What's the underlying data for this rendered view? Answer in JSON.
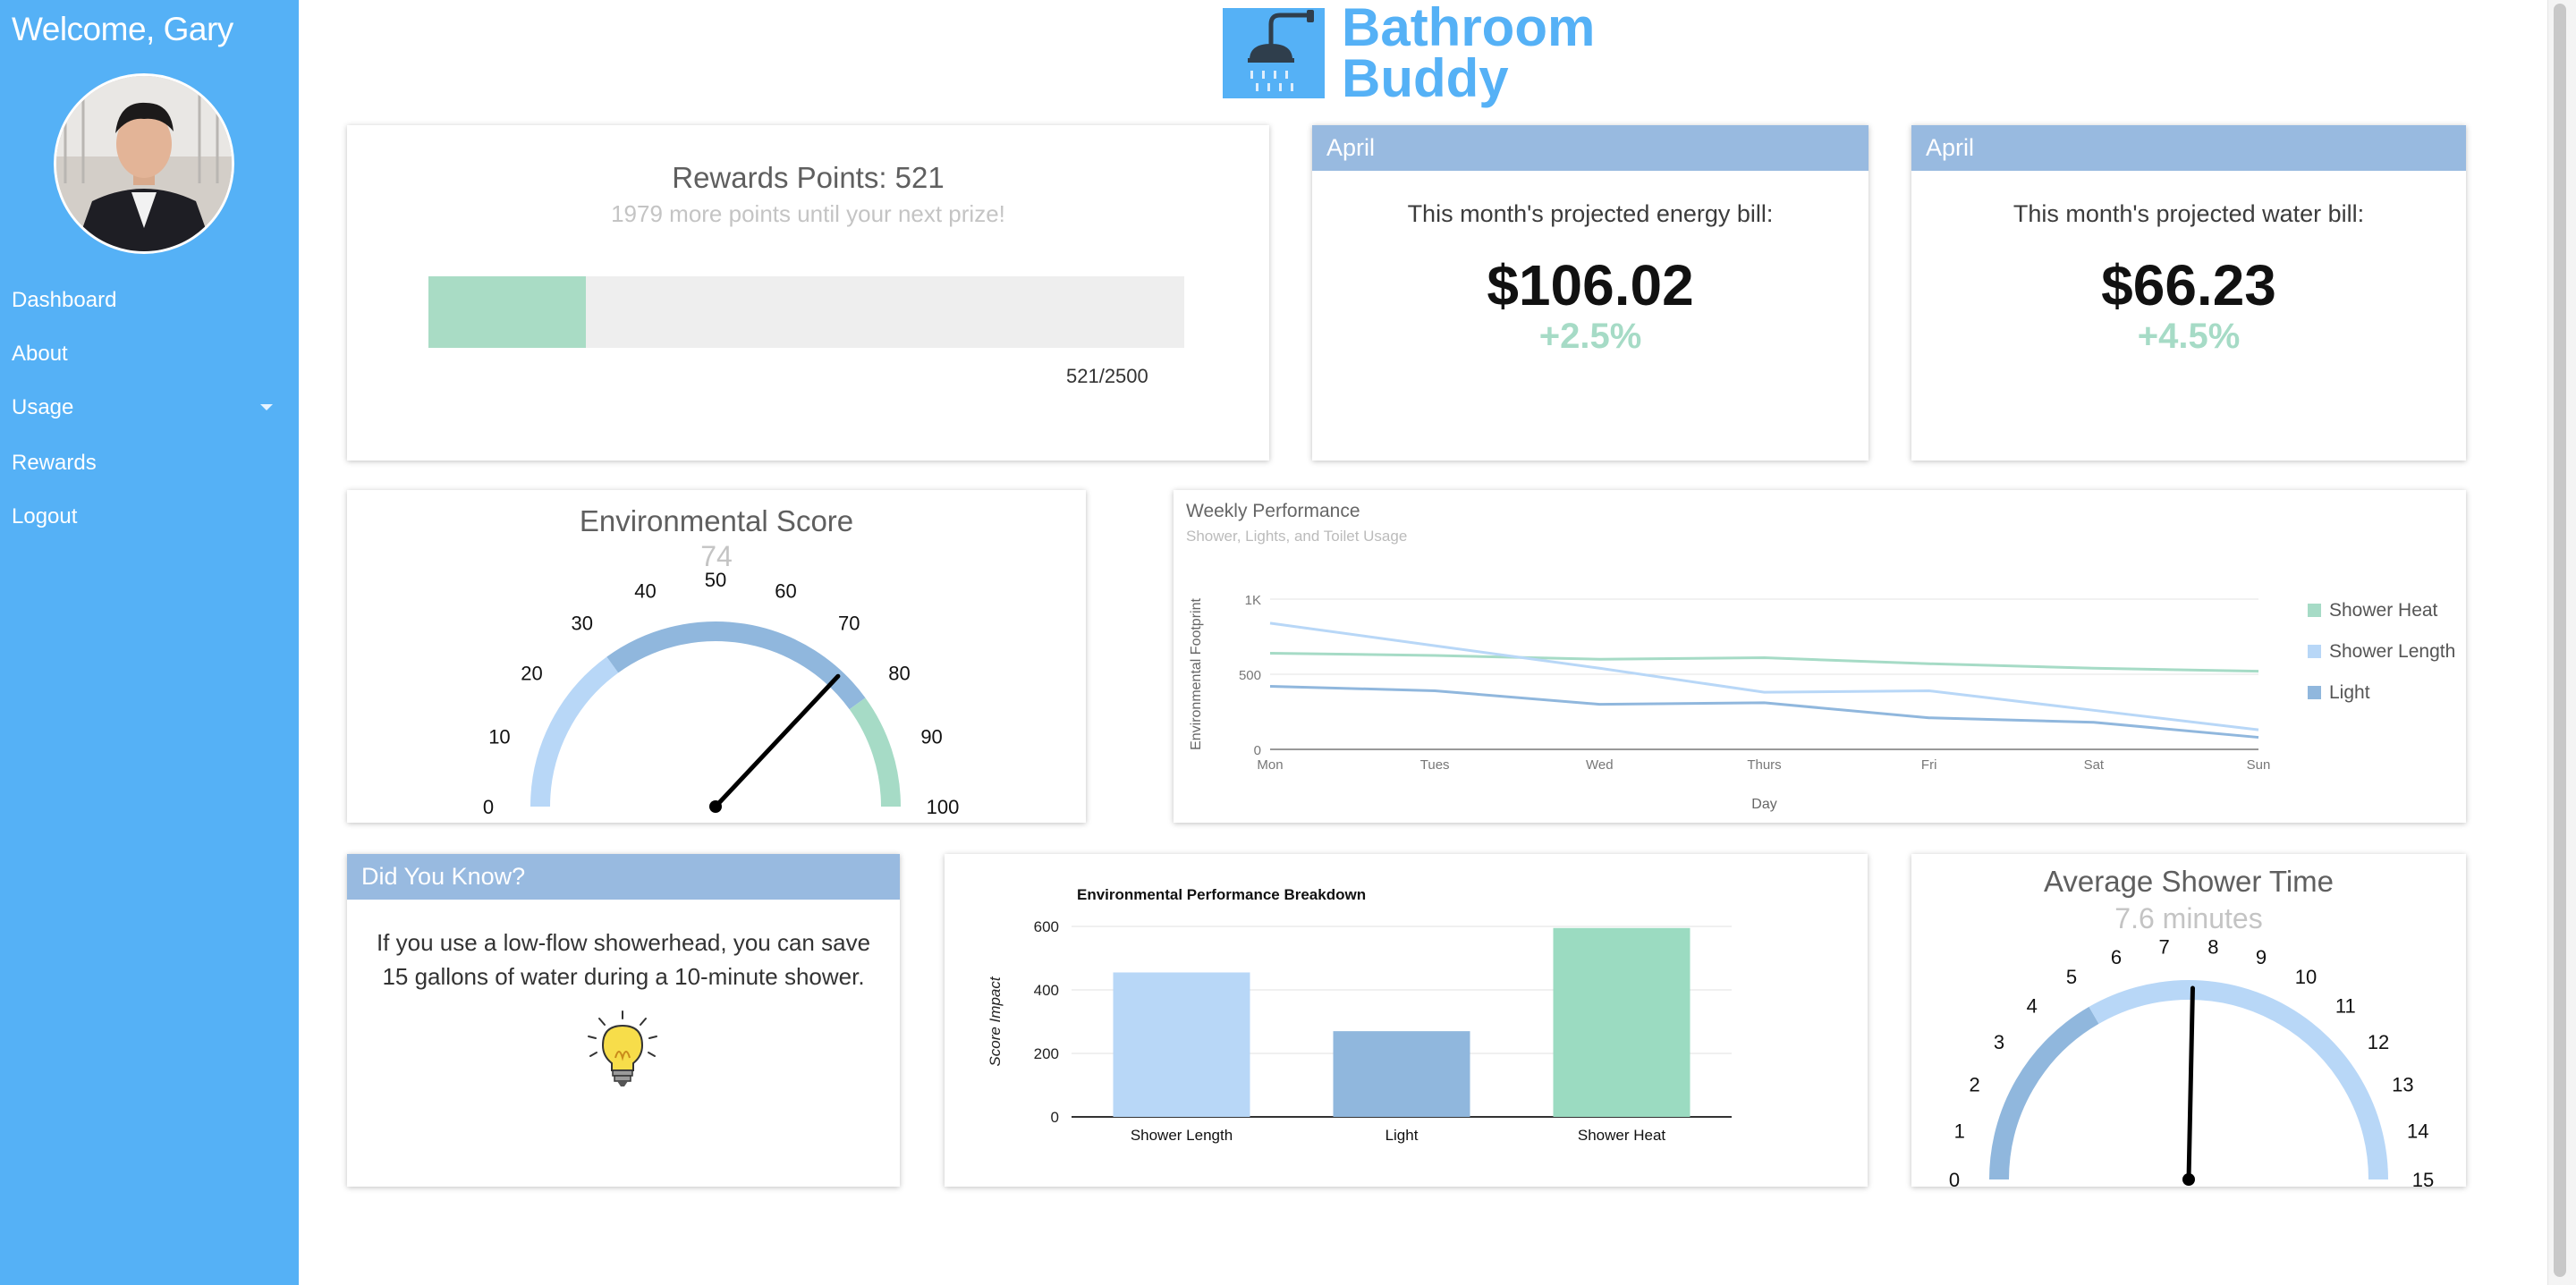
{
  "sidebar": {
    "welcome": "Welcome, Gary",
    "items": [
      {
        "label": "Dashboard"
      },
      {
        "label": "About"
      },
      {
        "label": "Usage"
      },
      {
        "label": "Rewards"
      },
      {
        "label": "Logout"
      }
    ]
  },
  "brand": {
    "line1": "Bathroom",
    "line2": "Buddy",
    "color": "#55b1f6"
  },
  "rewards": {
    "title": "Rewards Points: 521",
    "subtitle": "1979 more points until your next prize!",
    "progress_label": "521/2500",
    "progress_fraction": 0.2084
  },
  "energy": {
    "month": "April",
    "label": "This month's projected energy bill:",
    "amount": "$106.02",
    "change": "+2.5%"
  },
  "water": {
    "month": "April",
    "label": "This month's projected water bill:",
    "amount": "$66.23",
    "change": "+4.5%"
  },
  "env_score": {
    "title": "Environmental Score",
    "value_text": "74",
    "value": 74,
    "ticks": [
      "0",
      "10",
      "20",
      "30",
      "40",
      "50",
      "60",
      "70",
      "80",
      "90",
      "100"
    ],
    "colors": {
      "low": "#b8d7f7",
      "mid": "#90b7dd",
      "high": "#a6dbc6"
    }
  },
  "tip": {
    "header": "Did You Know?",
    "text": "If you use a low-flow showerhead, you can save 15 gallons of water during a 10-minute shower.",
    "icon": "lightbulb-icon"
  },
  "shower_time": {
    "title": "Average Shower Time",
    "value_text": "7.6 minutes",
    "value": 7.6,
    "ticks": [
      "0",
      "1",
      "2",
      "3",
      "4",
      "5",
      "6",
      "7",
      "8",
      "9",
      "10",
      "11",
      "12",
      "13",
      "14",
      "15"
    ],
    "colors": {
      "low": "#90b7dd",
      "high": "#b8d7f7"
    }
  },
  "chart_data": [
    {
      "type": "line",
      "title": "Weekly Performance",
      "subtitle": "Shower, Lights, and Toilet Usage",
      "xlabel": "Day",
      "ylabel": "Environmental Footprint",
      "x": [
        "Mon",
        "Tues",
        "Wed",
        "Thurs",
        "Fri",
        "Sat",
        "Sun"
      ],
      "ylim": [
        0,
        1000
      ],
      "yticks": [
        "0",
        "500",
        "1K"
      ],
      "legend": "right",
      "series": [
        {
          "name": "Shower Heat",
          "color": "#a6dbc6",
          "values": [
            640,
            625,
            600,
            610,
            570,
            540,
            520
          ]
        },
        {
          "name": "Shower Length",
          "color": "#b8d7f7",
          "values": [
            840,
            690,
            540,
            380,
            390,
            260,
            130
          ]
        },
        {
          "name": "Light",
          "color": "#90b7dd",
          "values": [
            420,
            390,
            300,
            310,
            210,
            180,
            80
          ]
        }
      ]
    },
    {
      "type": "bar",
      "title": "Environmental Performance Breakdown",
      "xlabel": "",
      "ylabel": "Score Impact",
      "categories": [
        "Shower Length",
        "Light",
        "Shower Heat"
      ],
      "values": [
        455,
        270,
        595
      ],
      "colors": [
        "#b8d7f7",
        "#90b7dd",
        "#9bdbc1"
      ],
      "ylim": [
        0,
        600
      ],
      "yticks": [
        "0",
        "200",
        "400",
        "600"
      ]
    }
  ]
}
